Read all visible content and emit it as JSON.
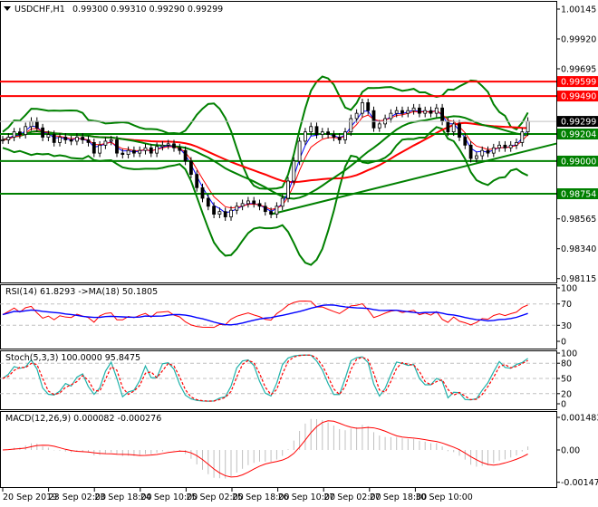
{
  "header": {
    "symbol": "USDCHF,H1",
    "ohlc": "0.99300 0.99310 0.99290 0.99299"
  },
  "colors": {
    "bull": "#000000",
    "bear": "#000000",
    "bands": "#008000",
    "resistance": "#ff0000",
    "support": "#008000",
    "ma_long": "#ff0000",
    "ma_mid": "#008000",
    "ma_fast": "#0000ff",
    "rsi": "#ff0000",
    "rsi_ma": "#0000ff",
    "stoch_main": "#20b2aa",
    "stoch_signal": "#ff0000",
    "macd_hist": "#c0c0c0",
    "macd_signal": "#ff0000",
    "current_price": "#000000"
  },
  "chart_data": [
    {
      "type": "candlestick",
      "title": "USDCHF,H1",
      "y_ticks": [
        "1.00145",
        "0.99920",
        "0.99695",
        "0.98565",
        "0.98340",
        "0.98115"
      ],
      "ylim": [
        0.98115,
        1.00145
      ],
      "x_ticks": [
        "20 Sep 2019",
        "23 Sep 02:00",
        "23 Sep 18:00",
        "24 Sep 10:00",
        "25 Sep 02:00",
        "25 Sep 18:00",
        "26 Sep 10:00",
        "27 Sep 02:00",
        "27 Sep 18:00",
        "30 Sep 10:00"
      ],
      "closes": [
        0.9916,
        0.9918,
        0.9922,
        0.992,
        0.9926,
        0.993,
        0.9925,
        0.9918,
        0.992,
        0.9914,
        0.9918,
        0.9916,
        0.9915,
        0.9918,
        0.9916,
        0.9914,
        0.9906,
        0.9912,
        0.9915,
        0.9916,
        0.9906,
        0.9905,
        0.9908,
        0.9906,
        0.9908,
        0.991,
        0.9906,
        0.9911,
        0.9912,
        0.9913,
        0.991,
        0.9908,
        0.99,
        0.989,
        0.988,
        0.9872,
        0.9866,
        0.986,
        0.9862,
        0.9858,
        0.9863,
        0.9866,
        0.9868,
        0.987,
        0.9868,
        0.9866,
        0.9862,
        0.986,
        0.9866,
        0.9872,
        0.9885,
        0.99,
        0.9915,
        0.9922,
        0.9926,
        0.992,
        0.9922,
        0.992,
        0.9918,
        0.9916,
        0.9922,
        0.9932,
        0.9936,
        0.9944,
        0.9938,
        0.9925,
        0.9928,
        0.9932,
        0.9936,
        0.9938,
        0.9936,
        0.9938,
        0.994,
        0.9936,
        0.9938,
        0.9936,
        0.994,
        0.993,
        0.9922,
        0.9928,
        0.9918,
        0.9912,
        0.9902,
        0.9904,
        0.9908,
        0.9906,
        0.991,
        0.9912,
        0.991,
        0.9912,
        0.9914,
        0.9922,
        0.993
      ],
      "levels": [
        {
          "price": "0.99599",
          "value": 0.99599,
          "kind": "resistance"
        },
        {
          "price": "0.99490",
          "value": 0.9949,
          "kind": "resistance"
        },
        {
          "price": "0.99204",
          "value": 0.99204,
          "kind": "support"
        },
        {
          "price": "0.99000",
          "value": 0.99,
          "kind": "support"
        },
        {
          "price": "0.98754",
          "value": 0.98754,
          "kind": "support"
        }
      ],
      "current_price": {
        "label": "0.99299",
        "value": 0.99299
      },
      "trendline": {
        "from": {
          "bar": 47,
          "price": 0.986
        },
        "to": {
          "bar": 97,
          "price": 0.99132
        }
      }
    },
    {
      "type": "line",
      "label": "RSI(14) 61.8293  ->MA(18) 50.1805",
      "y_ticks": [
        "100",
        "70",
        "30",
        "0"
      ],
      "ylim": [
        0,
        100
      ],
      "levels": [
        70,
        30
      ]
    },
    {
      "type": "line",
      "label": "Stoch(5,3,3) 100.0000 95.8475",
      "y_ticks": [
        "100",
        "80",
        "50",
        "20",
        "0"
      ],
      "ylim": [
        0,
        100
      ],
      "levels": [
        80,
        50,
        20
      ]
    },
    {
      "type": "bar",
      "label": "MACD(12,26,9) 0.000082 -0.000276",
      "y_ticks": [
        "0.001483",
        "0.00",
        "-0.00147"
      ],
      "ylim": [
        -0.00147,
        0.001483
      ]
    }
  ]
}
